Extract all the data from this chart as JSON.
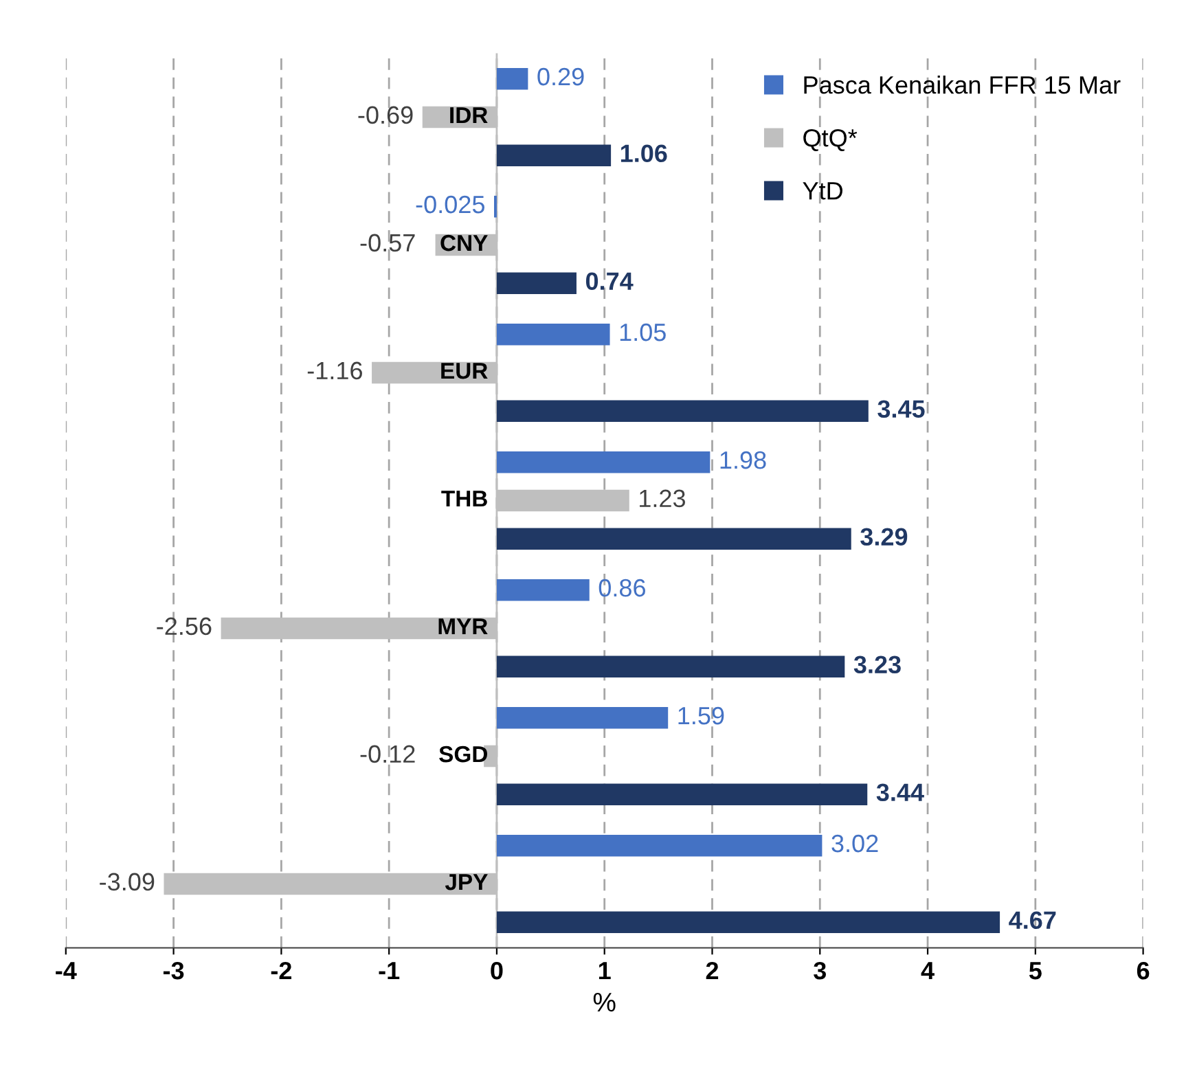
{
  "chart_data": {
    "type": "bar",
    "orientation": "horizontal",
    "xlabel": "%",
    "categories": [
      "IDR",
      "CNY",
      "EUR",
      "THB",
      "MYR",
      "SGD",
      "JPY"
    ],
    "series": [
      {
        "name": "Pasca Kenaikan FFR 15 Mar",
        "color": "#4472c4",
        "values": [
          0.29,
          -0.025,
          1.05,
          1.98,
          0.86,
          1.59,
          3.02
        ]
      },
      {
        "name": "QtQ*",
        "color": "#bfbfbf",
        "values": [
          -0.69,
          -0.57,
          -1.16,
          1.23,
          -2.56,
          -0.12,
          -3.09
        ]
      },
      {
        "name": "YtD",
        "color": "#203864",
        "values": [
          1.06,
          0.74,
          3.45,
          3.29,
          3.23,
          3.44,
          4.67
        ]
      }
    ],
    "xlim": [
      -4,
      6
    ],
    "xticks": [
      -4,
      -3,
      -2,
      -1,
      0,
      1,
      2,
      3,
      4,
      5,
      6
    ],
    "grid": "x",
    "legend": "top right",
    "data_labels": true
  }
}
